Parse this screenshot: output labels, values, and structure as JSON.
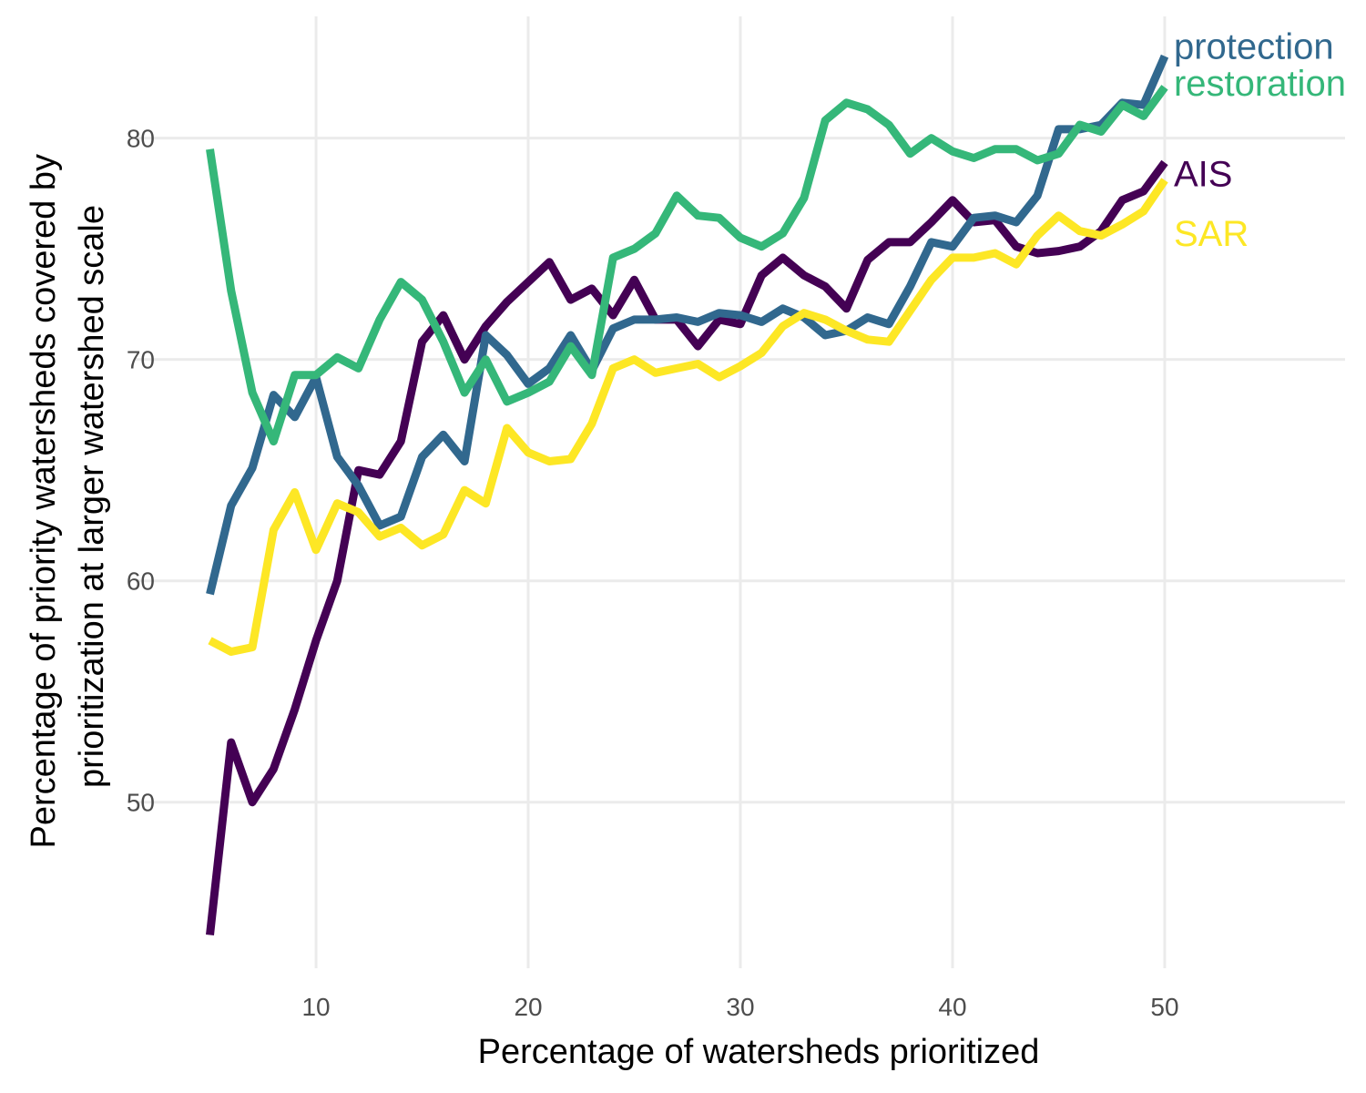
{
  "chart_data": {
    "type": "line",
    "xlabel": "Percentage of watersheds prioritized",
    "ylabel_lines": [
      "Percentage of priority watersheds covered by",
      "prioritization at larger watershed scale"
    ],
    "xlim": [
      1.5,
      58.5
    ],
    "ylim": [
      42.5,
      85.5
    ],
    "x_ticks": [
      10,
      20,
      30,
      40,
      50
    ],
    "y_ticks": [
      50,
      60,
      70,
      80
    ],
    "grid": true,
    "legend": "direct labels at line ends",
    "x": [
      5,
      6,
      7,
      8,
      9,
      10,
      11,
      12,
      13,
      14,
      15,
      16,
      17,
      18,
      19,
      20,
      21,
      22,
      23,
      24,
      25,
      26,
      27,
      28,
      29,
      30,
      31,
      32,
      33,
      34,
      35,
      36,
      37,
      38,
      39,
      40,
      41,
      42,
      43,
      44,
      45,
      46,
      47,
      48,
      49,
      50
    ],
    "series": [
      {
        "name": "AIS",
        "color": "#440154",
        "values": [
          44,
          52.7,
          50,
          51.5,
          54.2,
          57.3,
          60,
          65,
          64.8,
          66.3,
          70.8,
          72,
          70,
          71.5,
          72.6,
          73.5,
          74.4,
          72.7,
          73.2,
          72,
          73.6,
          71.8,
          71.8,
          70.6,
          71.8,
          71.6,
          73.8,
          74.6,
          73.8,
          73.3,
          72.3,
          74.5,
          75.3,
          75.3,
          76.2,
          77.2,
          76.2,
          76.3,
          75.1,
          74.8,
          74.9,
          75.1,
          75.8,
          77.2,
          77.6,
          78.9
        ]
      },
      {
        "name": "protection",
        "color": "#31688E",
        "values": [
          59.4,
          63.4,
          65.1,
          68.4,
          67.4,
          69.2,
          65.6,
          64.3,
          62.5,
          62.9,
          65.6,
          66.6,
          65.4,
          71.1,
          70.2,
          68.9,
          69.6,
          71.1,
          69.5,
          71.4,
          71.8,
          71.8,
          71.9,
          71.7,
          72.1,
          72,
          71.7,
          72.3,
          71.9,
          71.1,
          71.3,
          71.9,
          71.6,
          73.3,
          75.3,
          75.1,
          76.4,
          76.5,
          76.2,
          77.4,
          80.4,
          80.4,
          80.6,
          81.6,
          81.5,
          83.7
        ]
      },
      {
        "name": "restoration",
        "color": "#35B779",
        "values": [
          79.5,
          73.1,
          68.5,
          66.3,
          69.3,
          69.3,
          70.1,
          69.6,
          71.8,
          73.5,
          72.7,
          70.8,
          68.5,
          70,
          68.1,
          68.5,
          69,
          70.6,
          69.3,
          74.6,
          75,
          75.7,
          77.4,
          76.5,
          76.4,
          75.5,
          75.1,
          75.7,
          77.3,
          80.8,
          81.6,
          81.3,
          80.6,
          79.3,
          80,
          79.4,
          79.1,
          79.5,
          79.5,
          79,
          79.3,
          80.6,
          80.3,
          81.5,
          81,
          82.3
        ]
      },
      {
        "name": "SAR",
        "color": "#FDE725",
        "values": [
          57.3,
          56.8,
          57,
          62.3,
          64,
          61.4,
          63.5,
          63.1,
          62,
          62.4,
          61.6,
          62.1,
          64.1,
          63.5,
          66.9,
          65.8,
          65.4,
          65.5,
          67.1,
          69.6,
          70,
          69.4,
          69.6,
          69.8,
          69.2,
          69.7,
          70.3,
          71.5,
          72.1,
          71.8,
          71.3,
          70.9,
          70.8,
          72.2,
          73.6,
          74.6,
          74.6,
          74.8,
          74.3,
          75.6,
          76.5,
          75.8,
          75.6,
          76.1,
          76.7,
          78.1
        ]
      }
    ]
  }
}
